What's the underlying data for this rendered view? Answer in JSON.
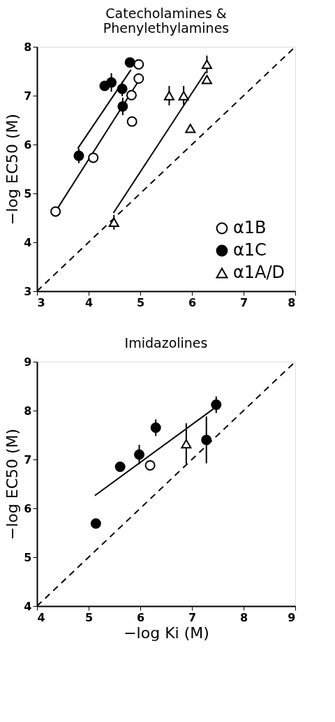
{
  "chart_data": [
    {
      "type": "scatter",
      "title": "Catecholamines &\nPhenylethylamines",
      "ylabel": "−log EC50 (M)",
      "xlim": [
        3,
        8
      ],
      "ylim": [
        3,
        8
      ],
      "xticks": [
        3,
        4,
        5,
        6,
        7,
        8
      ],
      "yticks": [
        3,
        4,
        5,
        6,
        7,
        8
      ],
      "legend": "bottom right",
      "series": [
        {
          "name": "α1B",
          "color": "#ffffff",
          "marker": "circle",
          "x": [
            3.36,
            4.09,
            4.84,
            4.83,
            4.97,
            4.97
          ],
          "values": [
            4.63,
            5.73,
            6.47,
            7.01,
            7.35,
            7.64
          ]
        },
        {
          "name": "α1C",
          "color": "#000000",
          "marker": "circle",
          "x": [
            3.81,
            4.31,
            4.44,
            4.65,
            4.66,
            4.8
          ],
          "values": [
            5.77,
            7.2,
            7.27,
            7.14,
            6.78,
            7.68
          ],
          "errors": [
            0.15,
            null,
            0.19,
            0.15,
            0.18,
            null
          ]
        },
        {
          "name": "α1A/D",
          "color": "#ffffff",
          "marker": "triangle",
          "x": [
            4.49,
            5.56,
            5.84,
            5.97,
            6.29,
            6.29
          ],
          "values": [
            4.41,
            7.0,
            7.0,
            6.33,
            7.64,
            7.33
          ],
          "errors": [
            0.15,
            0.2,
            0.2,
            null,
            0.18,
            null
          ]
        },
        {
          "type": "line",
          "color": "#000000",
          "line_style": "solid",
          "x": [
            3.79,
            4.82
          ],
          "values": [
            5.92,
            7.53
          ]
        },
        {
          "type": "line",
          "color": "#000000",
          "line_style": "solid",
          "x": [
            3.36,
            4.96
          ],
          "values": [
            4.63,
            7.29
          ]
        },
        {
          "type": "line",
          "color": "#000000",
          "line_style": "solid",
          "x": [
            4.48,
            6.27
          ],
          "values": [
            4.6,
            7.49
          ]
        },
        {
          "type": "line",
          "color": "#000000",
          "line_style": "dashed",
          "x": [
            3,
            8
          ],
          "values": [
            3,
            8
          ]
        }
      ]
    },
    {
      "type": "scatter",
      "title": "Imidazolines",
      "xlabel": "−log Ki (M)",
      "ylabel": "−log EC50 (M)",
      "xlim": [
        4,
        9
      ],
      "ylim": [
        4,
        9
      ],
      "xticks": [
        4,
        5,
        6,
        7,
        8,
        9
      ],
      "yticks": [
        4,
        5,
        6,
        7,
        8,
        9
      ],
      "series": [
        {
          "color": "#000000",
          "marker": "circle",
          "x": [
            5.14,
            5.61,
            5.98,
            6.3,
            7.28,
            7.47
          ],
          "values": [
            5.69,
            6.85,
            7.1,
            7.65,
            7.4,
            8.12
          ],
          "errors": [
            null,
            null,
            0.2,
            0.17,
            [
              6.92,
              7.88
            ],
            0.17
          ]
        },
        {
          "color": "#ffffff",
          "marker": "circle",
          "x": [
            6.19
          ],
          "values": [
            6.88
          ]
        },
        {
          "color": "#ffffff",
          "marker": "triangle",
          "x": [
            6.89
          ],
          "values": [
            7.32
          ],
          "errors": [
            [
              6.91,
              7.74
            ]
          ]
        },
        {
          "type": "line",
          "color": "#000000",
          "line_style": "solid",
          "x": [
            5.12,
            7.41
          ],
          "values": [
            6.26,
            8.03
          ]
        },
        {
          "type": "line",
          "color": "#000000",
          "line_style": "dashed",
          "x": [
            4,
            9
          ],
          "values": [
            4,
            9
          ]
        }
      ]
    }
  ]
}
